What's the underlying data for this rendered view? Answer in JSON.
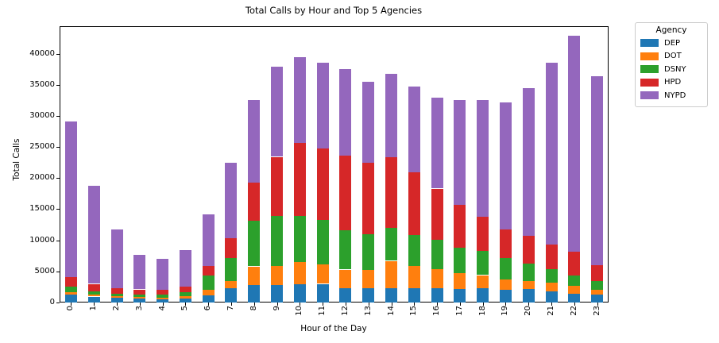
{
  "title": "Total Calls by Hour and Top 5 Agencies",
  "xlabel": "Hour of the Day",
  "ylabel": "Total Calls",
  "legend": {
    "title": "Agency",
    "entries": [
      {
        "label": "DEP",
        "color": "#1f77b4"
      },
      {
        "label": "DOT",
        "color": "#ff7f0e"
      },
      {
        "label": "DSNY",
        "color": "#2ca02c"
      },
      {
        "label": "HPD",
        "color": "#d62728"
      },
      {
        "label": "NYPD",
        "color": "#9467bd"
      }
    ]
  },
  "chart_data": {
    "type": "bar",
    "stacked": true,
    "title": "Total Calls by Hour and Top 5 Agencies",
    "xlabel": "Hour of the Day",
    "ylabel": "Total Calls",
    "legend_title": "Agency",
    "legend_position": "upper right, outside axes",
    "grid": false,
    "categories": [
      "0",
      "1",
      "2",
      "3",
      "4",
      "5",
      "6",
      "7",
      "8",
      "9",
      "10",
      "11",
      "12",
      "13",
      "14",
      "15",
      "16",
      "17",
      "18",
      "19",
      "20",
      "21",
      "22",
      "23"
    ],
    "ylim": [
      0,
      44400
    ],
    "y_ticks": [
      0,
      5000,
      10000,
      15000,
      20000,
      25000,
      30000,
      35000,
      40000
    ],
    "series": [
      {
        "name": "DEP",
        "color": "#1f77b4",
        "values": [
          1250,
          950,
          750,
          600,
          560,
          700,
          1150,
          2350,
          2800,
          2850,
          2950,
          3000,
          2250,
          2300,
          2350,
          2350,
          2270,
          2200,
          2250,
          2050,
          2150,
          1800,
          1450,
          1250
        ]
      },
      {
        "name": "DOT",
        "color": "#ff7f0e",
        "values": [
          400,
          350,
          300,
          280,
          270,
          320,
          900,
          1050,
          3000,
          3050,
          3500,
          3100,
          3050,
          2900,
          4350,
          3550,
          3130,
          2500,
          2150,
          1600,
          1350,
          1450,
          1200,
          800
        ]
      },
      {
        "name": "DSNY",
        "color": "#2ca02c",
        "values": [
          850,
          500,
          400,
          450,
          450,
          600,
          2300,
          3750,
          7300,
          8000,
          7500,
          7200,
          6350,
          5800,
          5350,
          4900,
          4700,
          4050,
          3900,
          3500,
          2750,
          2150,
          1650,
          1350
        ]
      },
      {
        "name": "HPD",
        "color": "#d62728",
        "values": [
          1550,
          1200,
          900,
          770,
          720,
          880,
          1550,
          3150,
          6200,
          9500,
          11650,
          11500,
          11950,
          11400,
          11350,
          10100,
          8200,
          6900,
          5450,
          4600,
          4450,
          3900,
          3900,
          2600
        ]
      },
      {
        "name": "NYPD",
        "color": "#9467bd",
        "values": [
          25050,
          15800,
          9450,
          5600,
          5000,
          5900,
          8300,
          12200,
          13200,
          14500,
          13800,
          13800,
          13900,
          13100,
          13400,
          13800,
          14600,
          16950,
          18750,
          20350,
          23800,
          29300,
          34700,
          30400
        ]
      }
    ],
    "totals": [
      29100,
      18800,
      11800,
      7700,
      7000,
      8400,
      14200,
      22500,
      32500,
      37900,
      39400,
      38600,
      37500,
      35500,
      36800,
      34700,
      32900,
      32600,
      32500,
      32100,
      34500,
      38600,
      42900,
      36400
    ]
  }
}
